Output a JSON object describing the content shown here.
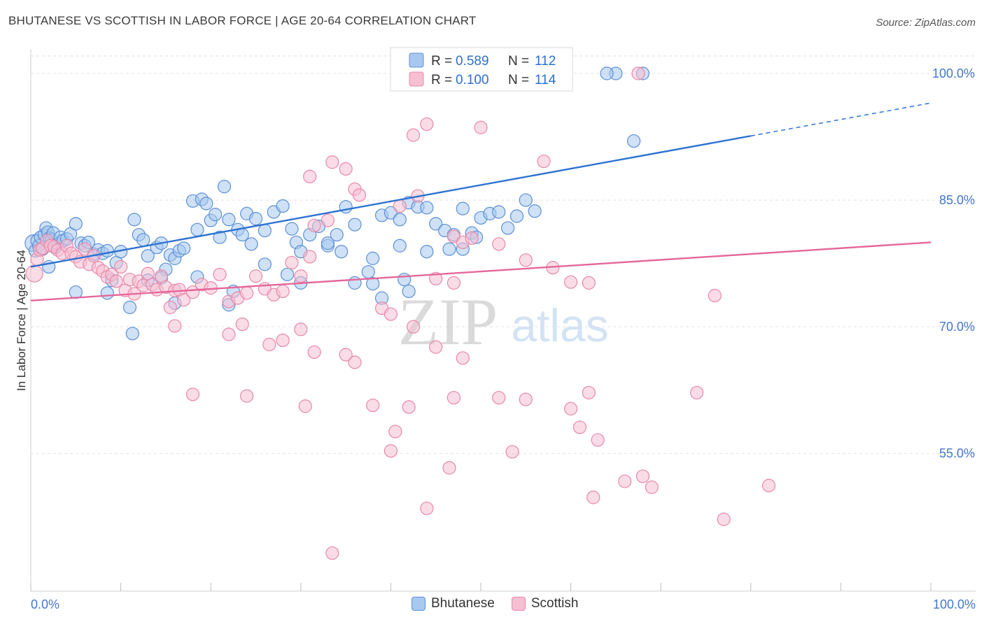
{
  "header": {
    "title": "BHUTANESE VS SCOTTISH IN LABOR FORCE | AGE 20-64 CORRELATION CHART",
    "source": "Source: ZipAtlas.com"
  },
  "watermark": {
    "zip": "ZIP",
    "atlas": "atlas"
  },
  "colors": {
    "blue_fill": "#a8c8ef",
    "blue_stroke": "#5b8fd6",
    "blue_line": "#2e72d2",
    "pink_fill": "#f6bfd2",
    "pink_stroke": "#e888a8",
    "pink_line": "#e4679a",
    "grid": "#e2e2e2",
    "axis_text": "#4477cc"
  },
  "legend": {
    "entries": [
      {
        "r_label": "R = ",
        "r_value": "0.589",
        "n_label": "N = ",
        "n_value": "112"
      },
      {
        "r_label": "R = ",
        "r_value": "0.100",
        "n_label": "N = ",
        "n_value": "114"
      }
    ]
  },
  "chart_data": {
    "type": "scatter",
    "title": "BHUTANESE VS SCOTTISH IN LABOR FORCE | AGE 20-64 CORRELATION CHART",
    "xlabel": "",
    "ylabel": "In Labor Force | Age 20-64",
    "xlim": [
      0,
      100
    ],
    "ylim": [
      38.7,
      102.9
    ],
    "x_tick_labels": [
      "0.0%",
      "100.0%"
    ],
    "y_ticks": [
      55,
      70,
      85,
      100
    ],
    "y_tick_labels": [
      "55.0%",
      "70.0%",
      "85.0%",
      "100.0%"
    ],
    "grid": true,
    "legend_position": "top-center",
    "series": [
      {
        "name": "Bhutanese",
        "r": 0.589,
        "n": 112,
        "trend": {
          "x0": 0,
          "y0": 77.1,
          "x1": 80,
          "y1": 92.6,
          "dash_x1": 100,
          "dash_y1": 96.5
        },
        "points": [
          [
            0.3,
            79.9
          ],
          [
            0.5,
            79.0
          ],
          [
            0.7,
            80.2
          ],
          [
            0.9,
            79.6
          ],
          [
            1.1,
            80.6
          ],
          [
            1.3,
            79.2
          ],
          [
            1.5,
            80.9
          ],
          [
            1.7,
            81.7
          ],
          [
            1.9,
            81.2
          ],
          [
            2.1,
            80.5
          ],
          [
            2.3,
            80.3
          ],
          [
            2.5,
            81.1
          ],
          [
            2.7,
            79.4
          ],
          [
            3.0,
            79.8
          ],
          [
            3.3,
            80.6
          ],
          [
            3.6,
            80.2
          ],
          [
            4.0,
            80.4
          ],
          [
            4.4,
            81.0
          ],
          [
            5.0,
            82.2
          ],
          [
            5.6,
            79.9
          ],
          [
            6.0,
            79.6
          ],
          [
            6.4,
            80.0
          ],
          [
            7.0,
            78.6
          ],
          [
            7.5,
            79.1
          ],
          [
            8.0,
            78.7
          ],
          [
            8.5,
            79.0
          ],
          [
            9.0,
            75.5
          ],
          [
            9.5,
            77.6
          ],
          [
            10.0,
            78.9
          ],
          [
            11.5,
            82.7
          ],
          [
            12.0,
            80.9
          ],
          [
            12.5,
            80.3
          ],
          [
            13.0,
            78.4
          ],
          [
            14.0,
            79.4
          ],
          [
            14.5,
            79.9
          ],
          [
            15.0,
            76.8
          ],
          [
            15.5,
            78.5
          ],
          [
            16.0,
            78.1
          ],
          [
            16.5,
            79.0
          ],
          [
            17.0,
            79.3
          ],
          [
            18.0,
            84.9
          ],
          [
            18.5,
            81.5
          ],
          [
            19.0,
            85.1
          ],
          [
            19.5,
            84.6
          ],
          [
            20.0,
            82.6
          ],
          [
            20.5,
            83.3
          ],
          [
            21.5,
            86.6
          ],
          [
            22.0,
            82.7
          ],
          [
            23.0,
            81.5
          ],
          [
            23.5,
            80.9
          ],
          [
            24.0,
            83.4
          ],
          [
            25.0,
            82.8
          ],
          [
            26.0,
            81.4
          ],
          [
            27.0,
            83.6
          ],
          [
            28.0,
            84.3
          ],
          [
            29.0,
            81.6
          ],
          [
            29.5,
            80.0
          ],
          [
            30.0,
            78.9
          ],
          [
            31.0,
            80.9
          ],
          [
            32.0,
            81.9
          ],
          [
            33.0,
            79.6
          ],
          [
            34.0,
            80.9
          ],
          [
            35.0,
            84.2
          ],
          [
            36.0,
            82.1
          ],
          [
            37.5,
            76.5
          ],
          [
            38.0,
            78.1
          ],
          [
            39.0,
            83.2
          ],
          [
            40.0,
            83.5
          ],
          [
            41.0,
            82.7
          ],
          [
            42.0,
            84.7
          ],
          [
            43.0,
            84.2
          ],
          [
            44.0,
            84.1
          ],
          [
            45.0,
            82.2
          ],
          [
            46.0,
            81.4
          ],
          [
            47.0,
            80.9
          ],
          [
            48.0,
            84.0
          ],
          [
            49.0,
            81.1
          ],
          [
            50.0,
            82.9
          ],
          [
            51.0,
            83.4
          ],
          [
            52.0,
            83.6
          ],
          [
            53.0,
            81.7
          ],
          [
            54.0,
            83.1
          ],
          [
            55.0,
            85.0
          ],
          [
            56.0,
            83.7
          ],
          [
            8.5,
            74.0
          ],
          [
            11.0,
            72.3
          ],
          [
            11.3,
            69.2
          ],
          [
            13.0,
            75.5
          ],
          [
            14.5,
            75.8
          ],
          [
            16.0,
            72.8
          ],
          [
            18.5,
            75.9
          ],
          [
            22.0,
            72.6
          ],
          [
            22.5,
            74.2
          ],
          [
            28.5,
            76.2
          ],
          [
            30.0,
            75.2
          ],
          [
            33.0,
            79.9
          ],
          [
            36.0,
            75.2
          ],
          [
            38.0,
            75.1
          ],
          [
            39.0,
            73.4
          ],
          [
            42.0,
            74.2
          ],
          [
            41.5,
            75.6
          ],
          [
            41.0,
            79.6
          ],
          [
            44.0,
            78.9
          ],
          [
            46.5,
            79.2
          ],
          [
            48.0,
            79.2
          ],
          [
            34.5,
            78.9
          ],
          [
            21.0,
            80.6
          ],
          [
            24.5,
            79.8
          ],
          [
            26.0,
            77.4
          ],
          [
            5.0,
            74.1
          ],
          [
            67.0,
            92.0
          ],
          [
            65.0,
            100.0
          ],
          [
            64.0,
            100.0
          ],
          [
            68.0,
            100.0
          ],
          [
            49.5,
            80.6
          ],
          [
            2.0,
            77.1
          ]
        ]
      },
      {
        "name": "Scottish",
        "r": 0.1,
        "n": 114,
        "trend": {
          "x0": 0,
          "y0": 73.1,
          "x1": 100,
          "y1": 80.0
        },
        "points": [
          [
            0.4,
            76.3
          ],
          [
            0.7,
            78.0
          ],
          [
            1.0,
            79.1
          ],
          [
            1.3,
            79.3
          ],
          [
            1.8,
            80.2
          ],
          [
            2.2,
            79.6
          ],
          [
            2.6,
            79.5
          ],
          [
            3.0,
            79.1
          ],
          [
            3.5,
            78.7
          ],
          [
            4.0,
            79.6
          ],
          [
            4.5,
            78.7
          ],
          [
            5.0,
            78.3
          ],
          [
            5.5,
            77.7
          ],
          [
            6.0,
            79.2
          ],
          [
            6.5,
            77.4
          ],
          [
            7.0,
            78.4
          ],
          [
            7.5,
            77.0
          ],
          [
            8.0,
            76.6
          ],
          [
            8.5,
            75.9
          ],
          [
            9.0,
            76.2
          ],
          [
            9.5,
            75.4
          ],
          [
            10.0,
            77.1
          ],
          [
            10.5,
            74.3
          ],
          [
            11.0,
            75.6
          ],
          [
            11.5,
            73.9
          ],
          [
            12.0,
            75.4
          ],
          [
            12.5,
            74.9
          ],
          [
            13.0,
            76.3
          ],
          [
            13.5,
            75.0
          ],
          [
            14.0,
            74.4
          ],
          [
            14.5,
            76.0
          ],
          [
            15.0,
            74.7
          ],
          [
            15.5,
            72.3
          ],
          [
            16.0,
            74.3
          ],
          [
            16.5,
            74.4
          ],
          [
            17.0,
            73.2
          ],
          [
            18.0,
            74.1
          ],
          [
            19.0,
            75.0
          ],
          [
            20.0,
            74.6
          ],
          [
            21.0,
            76.2
          ],
          [
            22.0,
            73.0
          ],
          [
            23.0,
            73.4
          ],
          [
            24.0,
            74.0
          ],
          [
            25.0,
            76.0
          ],
          [
            26.0,
            74.5
          ],
          [
            27.0,
            73.8
          ],
          [
            28.0,
            74.2
          ],
          [
            29.0,
            77.6
          ],
          [
            30.0,
            76.0
          ],
          [
            31.0,
            78.3
          ],
          [
            33.5,
            89.5
          ],
          [
            35.0,
            88.7
          ],
          [
            36.0,
            86.3
          ],
          [
            31.0,
            87.8
          ],
          [
            42.5,
            92.7
          ],
          [
            50.0,
            93.6
          ],
          [
            44.0,
            94.0
          ],
          [
            57.0,
            89.6
          ],
          [
            31.5,
            82.0
          ],
          [
            33.0,
            82.6
          ],
          [
            36.5,
            85.6
          ],
          [
            43.0,
            85.5
          ],
          [
            41.0,
            84.3
          ],
          [
            47.0,
            80.7
          ],
          [
            48.0,
            80.0
          ],
          [
            49.0,
            80.5
          ],
          [
            52.0,
            79.8
          ],
          [
            55.0,
            77.9
          ],
          [
            58.0,
            77.0
          ],
          [
            62.0,
            75.2
          ],
          [
            76.0,
            73.7
          ],
          [
            60.0,
            75.3
          ],
          [
            45.0,
            75.7
          ],
          [
            47.0,
            75.2
          ],
          [
            39.0,
            72.2
          ],
          [
            16.0,
            70.1
          ],
          [
            22.0,
            69.1
          ],
          [
            23.5,
            70.3
          ],
          [
            26.5,
            67.9
          ],
          [
            28.0,
            68.4
          ],
          [
            30.0,
            69.7
          ],
          [
            31.5,
            67.0
          ],
          [
            36.0,
            65.8
          ],
          [
            40.0,
            71.5
          ],
          [
            42.5,
            70.0
          ],
          [
            45.0,
            67.6
          ],
          [
            48.0,
            66.3
          ],
          [
            35.0,
            66.7
          ],
          [
            18.0,
            62.0
          ],
          [
            24.0,
            61.8
          ],
          [
            30.5,
            60.6
          ],
          [
            38.0,
            60.7
          ],
          [
            40.5,
            57.6
          ],
          [
            42.0,
            60.5
          ],
          [
            47.0,
            61.6
          ],
          [
            52.0,
            61.6
          ],
          [
            53.5,
            55.2
          ],
          [
            55.0,
            61.4
          ],
          [
            60.0,
            60.3
          ],
          [
            61.0,
            58.1
          ],
          [
            62.0,
            62.2
          ],
          [
            63.0,
            56.6
          ],
          [
            66.0,
            51.7
          ],
          [
            68.0,
            52.3
          ],
          [
            69.0,
            51.0
          ],
          [
            74.0,
            62.2
          ],
          [
            77.0,
            47.2
          ],
          [
            82.0,
            51.2
          ],
          [
            46.5,
            53.3
          ],
          [
            44.0,
            48.5
          ],
          [
            33.5,
            43.2
          ],
          [
            40.0,
            55.3
          ],
          [
            62.5,
            49.8
          ],
          [
            67.5,
            100.0
          ]
        ]
      }
    ]
  },
  "bottom_legend": {
    "items": [
      "Bhutanese",
      "Scottish"
    ]
  }
}
